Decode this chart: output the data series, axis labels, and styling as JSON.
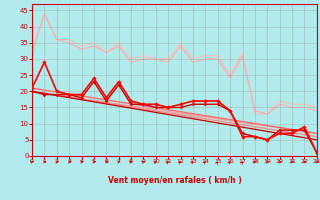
{
  "background_color": "#b2ebeb",
  "grid_color": "#999999",
  "xlabel": "Vent moyen/en rafales ( km/h )",
  "xlim": [
    0,
    23
  ],
  "ylim": [
    0,
    47
  ],
  "yticks": [
    0,
    5,
    10,
    15,
    20,
    25,
    30,
    35,
    40,
    45
  ],
  "xticks": [
    0,
    1,
    2,
    3,
    4,
    5,
    6,
    7,
    8,
    9,
    10,
    11,
    12,
    13,
    14,
    15,
    16,
    17,
    18,
    19,
    20,
    21,
    22,
    23
  ],
  "series": [
    {
      "x": [
        0,
        1,
        2,
        3,
        4,
        5,
        6,
        7,
        8,
        9,
        10,
        11,
        12,
        13,
        14,
        15,
        16,
        17,
        18,
        19,
        20,
        21,
        22,
        23
      ],
      "y": [
        32,
        44,
        36,
        36,
        34,
        35,
        32,
        35,
        30,
        31,
        30,
        30,
        35,
        30,
        31,
        31,
        25,
        32,
        13,
        13,
        17,
        16,
        16,
        15
      ],
      "color": "#ffbbbb",
      "lw": 0.8,
      "marker": null,
      "ms": 0,
      "ls": "-",
      "zo": 1
    },
    {
      "x": [
        0,
        1,
        2,
        3,
        4,
        5,
        6,
        7,
        8,
        9,
        10,
        11,
        12,
        13,
        14,
        15,
        16,
        17,
        18,
        19,
        20,
        21,
        22,
        23
      ],
      "y": [
        32,
        44,
        36,
        35,
        33,
        34,
        32,
        34,
        29,
        30,
        30,
        29,
        34,
        29,
        30,
        30,
        24,
        31,
        14,
        13,
        16,
        15,
        15,
        14
      ],
      "color": "#ffaaaa",
      "lw": 0.8,
      "marker": null,
      "ms": 0,
      "ls": "-",
      "zo": 1
    },
    {
      "x": [
        0,
        23
      ],
      "y": [
        20,
        7
      ],
      "color": "#ff9999",
      "lw": 0.9,
      "marker": null,
      "ms": 0,
      "ls": "-",
      "zo": 2
    },
    {
      "x": [
        0,
        23
      ],
      "y": [
        20,
        6
      ],
      "color": "#ff8888",
      "lw": 0.9,
      "marker": null,
      "ms": 0,
      "ls": "-",
      "zo": 2
    },
    {
      "x": [
        0,
        23
      ],
      "y": [
        21,
        7
      ],
      "color": "#ff6666",
      "lw": 0.9,
      "marker": null,
      "ms": 0,
      "ls": "-",
      "zo": 2
    },
    {
      "x": [
        0,
        23
      ],
      "y": [
        20,
        5
      ],
      "color": "#cc0000",
      "lw": 0.9,
      "marker": null,
      "ms": 0,
      "ls": "-",
      "zo": 2
    },
    {
      "x": [
        0,
        1,
        2,
        3,
        4,
        5,
        6,
        7,
        8,
        9,
        10,
        11,
        12,
        13,
        14,
        15,
        16,
        17,
        18,
        19,
        20,
        21,
        22,
        23
      ],
      "y": [
        21,
        29,
        20,
        19,
        19,
        24,
        18,
        23,
        17,
        16,
        16,
        15,
        16,
        17,
        17,
        17,
        14,
        6,
        6,
        5,
        7,
        7,
        9,
        1
      ],
      "color": "#ff0000",
      "lw": 1.2,
      "marker": "D",
      "ms": 2.2,
      "ls": "-",
      "zo": 5
    },
    {
      "x": [
        0,
        1,
        2,
        3,
        4,
        5,
        6,
        7,
        8,
        9,
        10,
        11,
        12,
        13,
        14,
        15,
        16,
        17,
        18,
        19,
        20,
        21,
        22,
        23
      ],
      "y": [
        20,
        19,
        19,
        19,
        18,
        23,
        17,
        22,
        16,
        16,
        15,
        15,
        15,
        16,
        16,
        16,
        14,
        7,
        6,
        5,
        8,
        8,
        8,
        1
      ],
      "color": "#cc0000",
      "lw": 1.0,
      "marker": "D",
      "ms": 1.8,
      "ls": "-",
      "zo": 4
    }
  ],
  "arrow_angles_deg": [
    50,
    40,
    30,
    30,
    30,
    35,
    30,
    45,
    55,
    60,
    65,
    70,
    70,
    70,
    75,
    80,
    75,
    80,
    50,
    40,
    35,
    40,
    35,
    35
  ]
}
